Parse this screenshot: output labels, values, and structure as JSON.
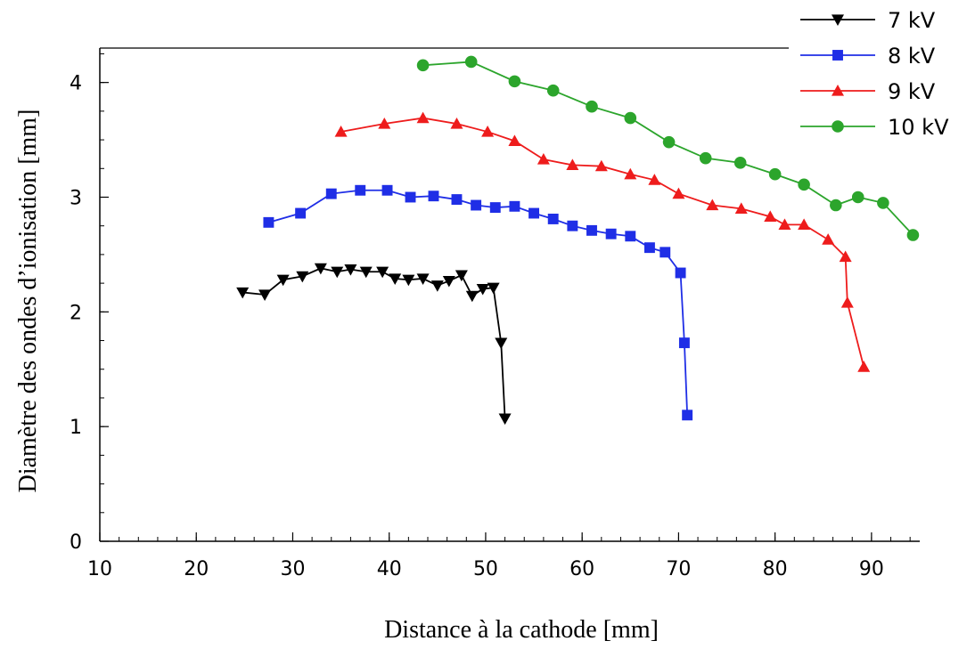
{
  "chart_data": {
    "type": "line",
    "title": "",
    "xlabel": "Distance à la cathode [mm]",
    "ylabel": "Diamètre des ondes d’ionisation [mm]",
    "xlim": [
      10,
      95
    ],
    "ylim": [
      0,
      4.3
    ],
    "x_ticks": [
      10,
      20,
      30,
      40,
      50,
      60,
      70,
      80,
      90
    ],
    "y_ticks": [
      0,
      1,
      2,
      3,
      4
    ],
    "grid": false,
    "legend_position": "top-right",
    "series": [
      {
        "name": "7 kV",
        "color": "#000000",
        "marker": "triangle-down",
        "x": [
          24.8,
          27.1,
          29.0,
          31.0,
          32.9,
          34.6,
          36.0,
          37.6,
          39.3,
          40.6,
          42.0,
          43.5,
          45.0,
          46.2,
          47.5,
          48.6,
          49.7,
          50.8,
          51.6,
          52.0
        ],
        "y": [
          2.17,
          2.15,
          2.28,
          2.31,
          2.38,
          2.35,
          2.37,
          2.35,
          2.35,
          2.29,
          2.28,
          2.29,
          2.23,
          2.27,
          2.32,
          2.14,
          2.2,
          2.21,
          1.73,
          1.07
        ]
      },
      {
        "name": "8 kV",
        "color": "#1f2ee6",
        "marker": "square",
        "x": [
          27.5,
          30.8,
          34.0,
          37.0,
          39.8,
          42.2,
          44.6,
          47.0,
          49.0,
          51.0,
          53.0,
          55.0,
          57.0,
          59.0,
          61.0,
          63.0,
          65.0,
          67.0,
          68.6,
          70.2,
          70.6,
          70.9
        ],
        "y": [
          2.78,
          2.86,
          3.03,
          3.06,
          3.06,
          3.0,
          3.01,
          2.98,
          2.93,
          2.91,
          2.92,
          2.86,
          2.81,
          2.75,
          2.71,
          2.68,
          2.66,
          2.56,
          2.52,
          2.34,
          1.73,
          1.1
        ]
      },
      {
        "name": "9 kV",
        "color": "#ee1c1c",
        "marker": "triangle-up",
        "x": [
          35.0,
          39.5,
          43.5,
          47.0,
          50.2,
          53.0,
          56.0,
          59.0,
          62.0,
          65.0,
          67.5,
          70.0,
          73.5,
          76.5,
          79.5,
          81.0,
          83.0,
          85.5,
          87.3,
          87.5,
          89.2
        ],
        "y": [
          3.57,
          3.64,
          3.69,
          3.64,
          3.57,
          3.49,
          3.33,
          3.28,
          3.27,
          3.2,
          3.15,
          3.03,
          2.93,
          2.9,
          2.83,
          2.76,
          2.76,
          2.63,
          2.48,
          2.08,
          1.52
        ]
      },
      {
        "name": "10 kV",
        "color": "#2ca52c",
        "marker": "circle",
        "x": [
          43.5,
          48.5,
          53.0,
          57.0,
          61.0,
          65.0,
          69.0,
          72.8,
          76.4,
          80.0,
          83.0,
          86.3,
          88.6,
          91.2,
          94.3
        ],
        "y": [
          4.15,
          4.18,
          4.01,
          3.93,
          3.79,
          3.69,
          3.48,
          3.34,
          3.3,
          3.2,
          3.11,
          2.93,
          3.0,
          2.95,
          2.67
        ]
      }
    ]
  }
}
